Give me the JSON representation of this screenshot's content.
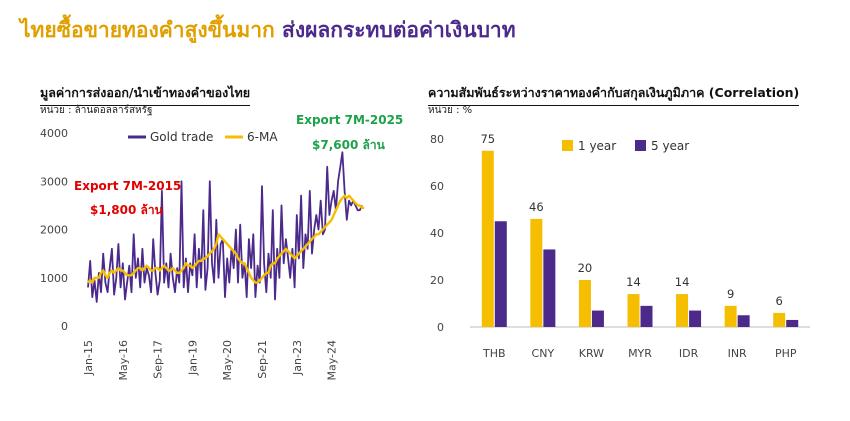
{
  "headline": {
    "part1": "ไทยซื้อขายทองคำสูงขึ้นมาก",
    "part2": "ส่งผลกระทบต่อค่าเงินบาท"
  },
  "colors": {
    "gold": "#F5BE00",
    "purple": "#4B2A8C",
    "red": "#E00000",
    "green": "#1BA24A"
  },
  "left_chart": {
    "title": "มูลค่าการส่งออก/นำเข้าทองคำของไทย",
    "unit": "หน่วย : ล้านดอลลาร์สหรัฐ",
    "legend": [
      "Gold trade",
      "6-MA"
    ],
    "annotations": {
      "a1_line1": "Export 7M-2015",
      "a1_line2": "$1,800 ล้าน",
      "a2_line1": "Export 7M-2025",
      "a2_line2": "$7,600 ล้าน"
    }
  },
  "right_chart": {
    "title": "ความสัมพันธ์ระหว่างราคาทองคำกับสกุลเงินภูมิภาค (Correlation)",
    "unit": "หน่วย : %",
    "legend": [
      "1 year",
      "5 year"
    ]
  },
  "chart_data": [
    {
      "type": "line",
      "ylim": [
        0,
        4000
      ],
      "yticks": [
        0,
        1000,
        2000,
        3000,
        4000
      ],
      "xticks": [
        "Jan-15",
        "May-16",
        "Sep-17",
        "Jan-19",
        "May-20",
        "Sep-21",
        "Jan-23",
        "May-24"
      ],
      "x_start": "2015-01",
      "x_end": "2025-07",
      "series": [
        {
          "name": "Gold trade",
          "values": [
            800,
            1350,
            600,
            950,
            500,
            1100,
            700,
            1500,
            900,
            700,
            1200,
            1600,
            650,
            1000,
            1700,
            800,
            1300,
            550,
            900,
            1250,
            700,
            1900,
            1000,
            1400,
            800,
            1600,
            900,
            1200,
            1050,
            700,
            1800,
            1100,
            650,
            950,
            2800,
            900,
            1300,
            800,
            1500,
            1000,
            700,
            1200,
            900,
            3000,
            800,
            1400,
            700,
            1300,
            1050,
            1900,
            800,
            1600,
            1000,
            2400,
            750,
            1200,
            3000,
            1300,
            900,
            2200,
            1000,
            1700,
            1800,
            600,
            1400,
            900,
            1600,
            1200,
            2000,
            900,
            2100,
            1000,
            1300,
            600,
            1800,
            1200,
            1900,
            600,
            1250,
            900,
            2900,
            1300,
            700,
            1500,
            1000,
            2400,
            550,
            1600,
            1000,
            2500,
            1300,
            1800,
            1400,
            1000,
            1600,
            800,
            2300,
            1400,
            2700,
            1200,
            1900,
            1600,
            2800,
            1500,
            2000,
            2300,
            2000,
            2600,
            1900,
            2000,
            3300,
            2300,
            2600,
            2800,
            2400,
            3000,
            3300,
            3600,
            2800,
            2200,
            2600,
            2500,
            2600,
            2500,
            2400,
            2400,
            2500
          ]
        },
        {
          "name": "6-MA",
          "values": [
            900,
            950,
            900,
            1000,
            1000,
            1000,
            1100,
            1150,
            1050,
            1000,
            1100,
            1150,
            1100,
            1150,
            1200,
            1150,
            1150,
            1100,
            1050,
            1050,
            1050,
            1100,
            1150,
            1200,
            1200,
            1150,
            1200,
            1250,
            1200,
            1150,
            1150,
            1200,
            1200,
            1150,
            1200,
            1250,
            1200,
            1150,
            1150,
            1200,
            1150,
            1100,
            1100,
            1150,
            1200,
            1300,
            1250,
            1250,
            1200,
            1250,
            1300,
            1350,
            1350,
            1400,
            1400,
            1450,
            1500,
            1550,
            1600,
            1700,
            1900,
            1850,
            1800,
            1750,
            1700,
            1650,
            1600,
            1550,
            1500,
            1400,
            1350,
            1300,
            1300,
            1200,
            1100,
            1000,
            950,
            900,
            900,
            950,
            1000,
            1050,
            1100,
            1100,
            1250,
            1300,
            1300,
            1400,
            1450,
            1500,
            1550,
            1600,
            1550,
            1500,
            1450,
            1400,
            1450,
            1500,
            1550,
            1600,
            1650,
            1700,
            1750,
            1800,
            1850,
            1900,
            1900,
            1950,
            2000,
            2050,
            2100,
            2150,
            2200,
            2300,
            2400,
            2500,
            2600,
            2650,
            2700,
            2650,
            2700,
            2650,
            2600,
            2550,
            2500,
            2500,
            2450,
            2450
          ]
        }
      ]
    },
    {
      "type": "bar",
      "ylim": [
        0,
        80
      ],
      "yticks": [
        0,
        20,
        40,
        60,
        80
      ],
      "categories": [
        "THB",
        "CNY",
        "KRW",
        "MYR",
        "IDR",
        "INR",
        "PHP"
      ],
      "series": [
        {
          "name": "1 year",
          "values": [
            75,
            46,
            20,
            14,
            14,
            9,
            6
          ]
        },
        {
          "name": "5 year",
          "values": [
            45,
            33,
            7,
            9,
            7,
            5,
            3
          ]
        }
      ],
      "data_labels": [
        "75",
        "46",
        "20",
        "14",
        "14",
        "9",
        "6"
      ]
    }
  ]
}
